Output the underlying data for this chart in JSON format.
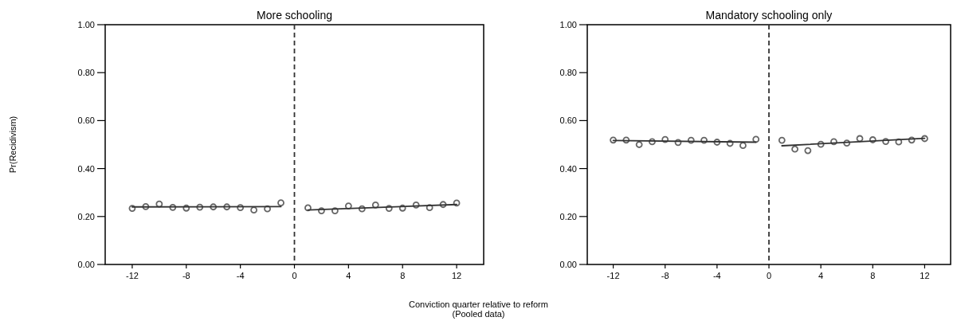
{
  "chart_data": [
    {
      "type": "scatter",
      "title": "More schooling",
      "ylabel": "Pr(Recidivism)",
      "xlabel": "Conviction quarter relative to reform",
      "annotations": [
        "(Pooled data)"
      ],
      "xlim": [
        -14,
        14
      ],
      "xticks": [
        -12,
        -8,
        -4,
        0,
        4,
        8,
        12
      ],
      "ylim": [
        0,
        1
      ],
      "yticks": [
        {
          "value": 0,
          "label": "0.00"
        },
        {
          "value": 0.2,
          "label": "0.20"
        },
        {
          "value": 0.4,
          "label": "0.40"
        },
        {
          "value": 0.6,
          "label": "0.60"
        },
        {
          "value": 0.8,
          "label": "0.80"
        },
        {
          "value": 1,
          "label": "1.00"
        }
      ],
      "grid": false,
      "ref_lines": [
        {
          "axis": "x",
          "value": 0,
          "line_style": "dashed",
          "color": "#333333"
        }
      ],
      "series": [
        {
          "marker": "circle",
          "color": "#666666",
          "x": [
            -12,
            -11,
            -10,
            -9,
            -8,
            -7,
            -6,
            -5,
            -4,
            -3,
            -2,
            -1,
            1,
            2,
            3,
            4,
            5,
            6,
            7,
            8,
            9,
            10,
            11,
            12
          ],
          "values": [
            0.234,
            0.241,
            0.252,
            0.238,
            0.235,
            0.239,
            0.24,
            0.24,
            0.237,
            0.227,
            0.232,
            0.257,
            0.236,
            0.224,
            0.224,
            0.244,
            0.232,
            0.248,
            0.234,
            0.235,
            0.248,
            0.237,
            0.25,
            0.256
          ]
        },
        {
          "type": "line",
          "color": "#333333",
          "x": [
            -12,
            -1
          ],
          "values": [
            0.24,
            0.241
          ]
        },
        {
          "type": "line",
          "color": "#333333",
          "x": [
            1,
            12
          ],
          "values": [
            0.227,
            0.25
          ]
        }
      ]
    },
    {
      "type": "scatter",
      "title": "Mandatory schooling only",
      "xlim": [
        -14,
        14
      ],
      "xticks": [
        -12,
        -8,
        -4,
        0,
        4,
        8,
        12
      ],
      "ylim": [
        0,
        1
      ],
      "yticks": [
        {
          "value": 0,
          "label": "0.00"
        },
        {
          "value": 0.2,
          "label": "0.20"
        },
        {
          "value": 0.4,
          "label": "0.40"
        },
        {
          "value": 0.6,
          "label": "0.60"
        },
        {
          "value": 0.8,
          "label": "0.80"
        },
        {
          "value": 1,
          "label": "1.00"
        }
      ],
      "grid": false,
      "ref_lines": [
        {
          "axis": "x",
          "value": 0,
          "line_style": "dashed",
          "color": "#333333"
        }
      ],
      "series": [
        {
          "marker": "circle",
          "color": "#666666",
          "x": [
            -12,
            -11,
            -10,
            -9,
            -8,
            -7,
            -6,
            -5,
            -4,
            -3,
            -2,
            -1,
            1,
            2,
            3,
            4,
            5,
            6,
            7,
            8,
            9,
            10,
            11,
            12
          ],
          "values": [
            0.519,
            0.519,
            0.5,
            0.512,
            0.521,
            0.509,
            0.518,
            0.518,
            0.51,
            0.505,
            0.496,
            0.522,
            0.518,
            0.481,
            0.475,
            0.501,
            0.512,
            0.506,
            0.525,
            0.52,
            0.513,
            0.511,
            0.519,
            0.525
          ]
        },
        {
          "type": "line",
          "color": "#333333",
          "x": [
            -12,
            -1
          ],
          "values": [
            0.517,
            0.51
          ]
        },
        {
          "type": "line",
          "color": "#333333",
          "x": [
            1,
            12
          ],
          "values": [
            0.495,
            0.526
          ]
        }
      ]
    }
  ]
}
